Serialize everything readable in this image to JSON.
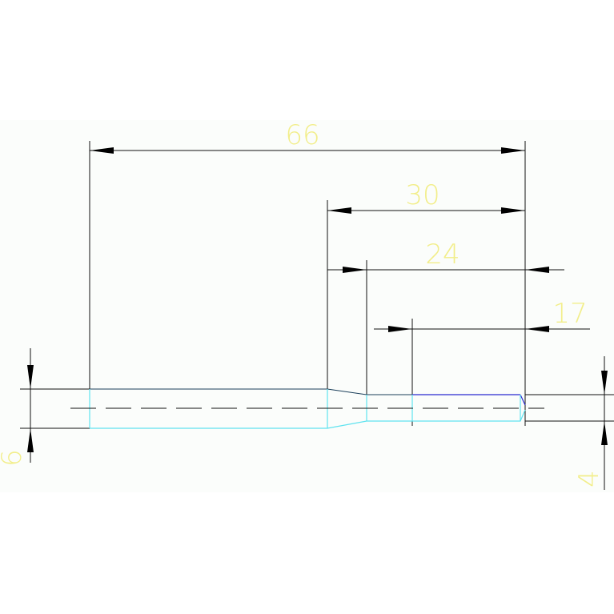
{
  "dimensions": [
    "66",
    "30",
    "24",
    "17",
    "6",
    "4"
  ]
}
